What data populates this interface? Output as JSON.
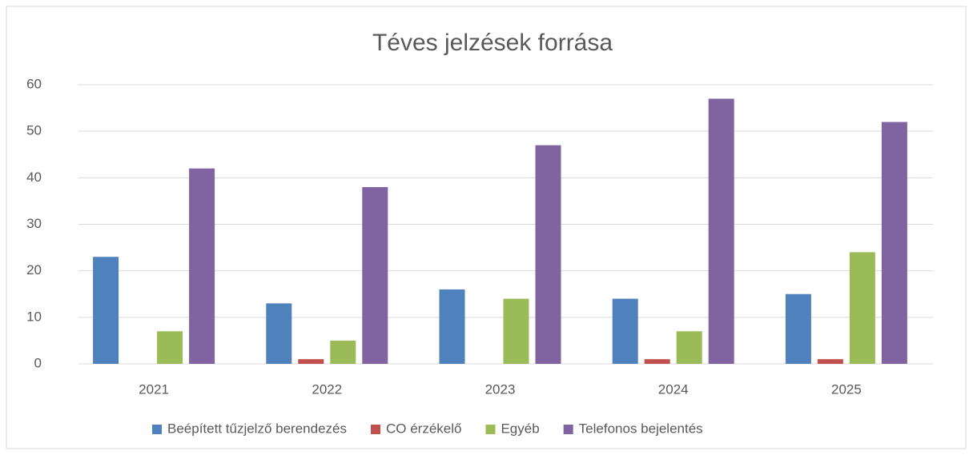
{
  "chart_data": {
    "type": "bar",
    "title": "Téves jelzések forrása",
    "categories": [
      "2021",
      "2022",
      "2023",
      "2024",
      "2025"
    ],
    "series": [
      {
        "name": "Beépített tűzjelző berendezés",
        "color": "#4f81bd",
        "values": [
          23,
          13,
          16,
          14,
          15
        ]
      },
      {
        "name": "CO érzékelő",
        "color": "#c0504d",
        "values": [
          0,
          1,
          0,
          1,
          1
        ]
      },
      {
        "name": "Egyéb",
        "color": "#9bbb59",
        "values": [
          7,
          5,
          14,
          7,
          24
        ]
      },
      {
        "name": "Telefonos bejelentés",
        "color": "#8064a2",
        "values": [
          42,
          38,
          47,
          57,
          52
        ]
      }
    ],
    "ylim": [
      0,
      60
    ],
    "yticks": [
      0,
      10,
      20,
      30,
      40,
      50,
      60
    ],
    "grid": true,
    "legend": "bottom"
  }
}
